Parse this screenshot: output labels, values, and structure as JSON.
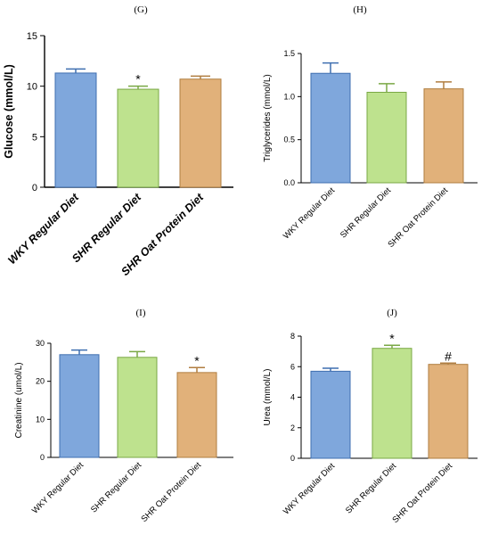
{
  "colors": {
    "blue": "#7fa7dc",
    "green": "#bee28e",
    "orange": "#e1b17a",
    "blue_edge": "#3f6fb0",
    "green_edge": "#7aa845",
    "orange_edge": "#b07e40"
  },
  "chart_data": [
    {
      "panel": "(G)",
      "type": "bar",
      "categories": [
        "WKY Regular Diet",
        "SHR Regular Diet",
        "SHR Oat Protein Diet"
      ],
      "values": [
        11.3,
        9.7,
        10.7
      ],
      "errors": [
        0.4,
        0.3,
        0.3
      ],
      "annotations": [
        "",
        "*",
        ""
      ],
      "ylabel": "Glucose (mmol/L)",
      "ylim": [
        0,
        15
      ],
      "yticks": [
        "0",
        "5",
        "10",
        "15"
      ],
      "yticks_values": [
        0,
        5,
        10,
        15
      ],
      "colors": [
        "#7fa7dc",
        "#bee28e",
        "#e1b17a"
      ]
    },
    {
      "panel": "(H)",
      "type": "bar",
      "categories": [
        "WKY Regular Diet",
        "SHR Regular Diet",
        "SHR Oat Protein Diet"
      ],
      "values": [
        1.27,
        1.05,
        1.09
      ],
      "errors": [
        0.12,
        0.1,
        0.08
      ],
      "annotations": [
        "",
        "",
        ""
      ],
      "ylabel": "Triglycerides (mmol/L)",
      "ylim": [
        0,
        1.5
      ],
      "yticks": [
        "0.0",
        "0.5",
        "1.0",
        "1.5"
      ],
      "yticks_values": [
        0,
        0.5,
        1.0,
        1.5
      ],
      "colors": [
        "#7fa7dc",
        "#bee28e",
        "#e1b17a"
      ]
    },
    {
      "panel": "(I)",
      "type": "bar",
      "categories": [
        "WKY Regular Diet",
        "SHR Regular  Diet",
        "SHR Oat Protein Diet"
      ],
      "values": [
        27.0,
        26.3,
        22.3
      ],
      "errors": [
        1.2,
        1.5,
        1.3
      ],
      "annotations": [
        "",
        "",
        "*"
      ],
      "ylabel": "Creatinine (umol/L)",
      "ylim": [
        0,
        30
      ],
      "yticks": [
        "0",
        "10",
        "20",
        "30"
      ],
      "yticks_values": [
        0,
        10,
        20,
        30
      ],
      "colors": [
        "#7fa7dc",
        "#bee28e",
        "#e1b17a"
      ]
    },
    {
      "panel": "(J)",
      "type": "bar",
      "categories": [
        "WKY Regular Diet",
        "SHR Regular Diet",
        "SHR Oat Protein Diet"
      ],
      "values": [
        5.7,
        7.2,
        6.15
      ],
      "errors": [
        0.2,
        0.2,
        0.08
      ],
      "annotations": [
        "",
        "*",
        "#"
      ],
      "ylabel": "Urea (mmol/L)",
      "ylim": [
        0,
        8
      ],
      "yticks": [
        "0",
        "2",
        "4",
        "6",
        "8"
      ],
      "yticks_values": [
        0,
        2,
        4,
        6,
        8
      ],
      "colors": [
        "#7fa7dc",
        "#bee28e",
        "#e1b17a"
      ]
    }
  ]
}
